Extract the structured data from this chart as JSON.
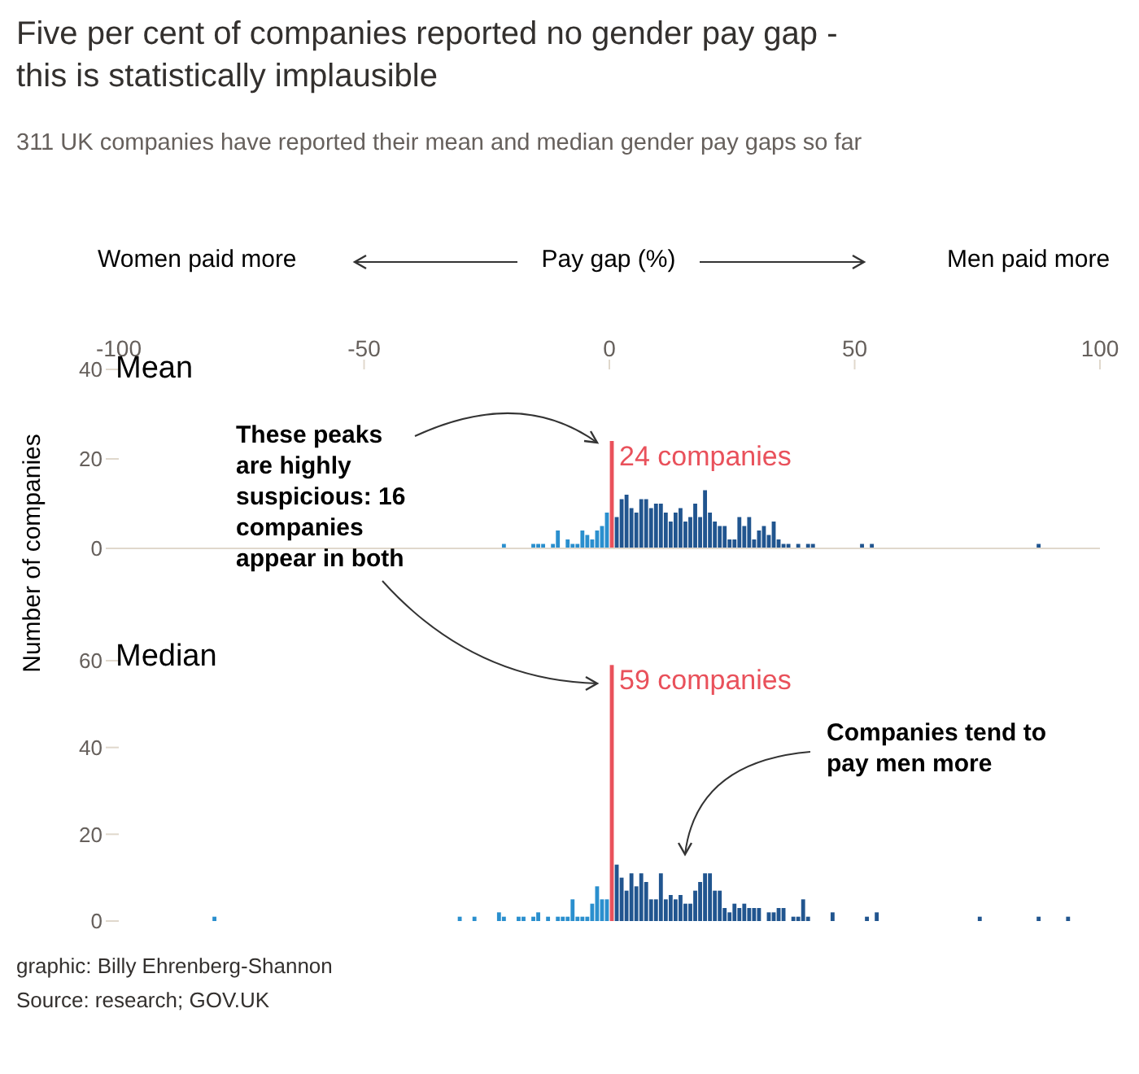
{
  "chart_data": [
    {
      "type": "histogram",
      "title": "Five per cent of companies reported no gender pay gap - this is statistically implausible",
      "subtitle": "311 UK companies have reported their mean and median gender pay gaps so far",
      "xlabel": "Pay gap (%)",
      "ylabel": "Number of companies",
      "annotations": [
        "Mean",
        "Women paid more",
        "Men paid more",
        "These peaks are highly suspicious: 16 companies appear in both",
        "graphic: Billy Ehrenberg-Shannon",
        "Source: research; GOV.UK",
        {
          "text": "24 companies",
          "x": 0,
          "y": 24
        }
      ],
      "xlim": [
        -100,
        100
      ],
      "xticks": [
        -100,
        -50,
        0,
        50,
        100
      ],
      "ylim": [
        0,
        40
      ],
      "yticks": [
        0,
        20,
        40
      ],
      "bins": [
        -22,
        -21,
        -20,
        -19,
        -18,
        -17,
        -16,
        -15,
        -14,
        -13,
        -12,
        -11,
        -10,
        -9,
        -8,
        -7,
        -6,
        -5,
        -4,
        -3,
        -2,
        -1,
        0,
        1,
        2,
        3,
        4,
        5,
        6,
        7,
        8,
        9,
        10,
        11,
        12,
        13,
        14,
        15,
        16,
        17,
        18,
        19,
        20,
        21,
        22,
        23,
        24,
        25,
        26,
        27,
        28,
        29,
        30,
        31,
        32,
        33,
        34,
        35,
        36,
        37,
        38,
        39,
        40,
        41,
        42,
        43,
        44,
        45,
        46,
        47,
        48,
        49,
        50,
        51,
        52,
        53,
        54,
        55,
        56,
        57,
        58,
        59,
        60,
        61,
        62,
        63,
        64,
        65,
        66,
        67,
        68,
        69,
        70,
        71,
        72,
        73,
        74,
        75,
        76,
        77,
        78,
        79,
        80,
        81,
        82,
        83,
        84,
        85,
        86,
        87,
        88
      ],
      "values": [
        1,
        null,
        null,
        null,
        null,
        null,
        1,
        1,
        1,
        null,
        1,
        4,
        null,
        2,
        1,
        1,
        4,
        3,
        2,
        4,
        5,
        8,
        24,
        7,
        11,
        12,
        9,
        8,
        11,
        11,
        9,
        10,
        10,
        8,
        6,
        8,
        9,
        6,
        7,
        10,
        7,
        13,
        8,
        6,
        5,
        5,
        2,
        2,
        7,
        5,
        7,
        2,
        4,
        5,
        3,
        6,
        2,
        1,
        1,
        null,
        1,
        null,
        1,
        1,
        null,
        null,
        null,
        null,
        null,
        null,
        null,
        null,
        null,
        1,
        null,
        1,
        null,
        null,
        null,
        null,
        null,
        null,
        null,
        null,
        null,
        null,
        null,
        null,
        null,
        null,
        null,
        null,
        null,
        null,
        null,
        null,
        null,
        null,
        null,
        null,
        null,
        null,
        null,
        null,
        null,
        null,
        null,
        null,
        null,
        1
      ],
      "colors": [
        "#2a8fce",
        "#2a8fce",
        "#2a8fce",
        "#2a8fce",
        "#2a8fce",
        "#2a8fce",
        "#2a8fce",
        "#2a8fce",
        "#2a8fce",
        "#2a8fce",
        "#2a8fce",
        "#2a8fce",
        "#2a8fce",
        "#2a8fce",
        "#2a8fce",
        "#2a8fce",
        "#2a8fce",
        "#2a8fce",
        "#2a8fce",
        "#2a8fce",
        "#2a8fce",
        "#2a8fce",
        "#e9515b",
        "#21558f",
        "#21558f",
        "#21558f",
        "#21558f",
        "#21558f",
        "#21558f",
        "#21558f",
        "#21558f",
        "#21558f",
        "#21558f",
        "#21558f",
        "#21558f",
        "#21558f",
        "#21558f",
        "#21558f",
        "#21558f",
        "#21558f",
        "#21558f",
        "#21558f",
        "#21558f",
        "#21558f",
        "#21558f",
        "#21558f",
        "#21558f",
        "#21558f",
        "#21558f",
        "#21558f",
        "#21558f",
        "#21558f",
        "#21558f",
        "#21558f",
        "#21558f",
        "#21558f",
        "#21558f",
        "#21558f",
        "#21558f",
        "#21558f",
        "#21558f",
        "#21558f",
        "#21558f",
        "#21558f",
        "#21558f",
        "#21558f",
        "#21558f",
        "#21558f",
        "#21558f",
        "#21558f",
        "#21558f",
        "#21558f",
        "#21558f",
        "#21558f",
        "#21558f",
        "#21558f",
        "#21558f",
        "#21558f",
        "#21558f",
        "#21558f",
        "#21558f",
        "#21558f",
        "#21558f",
        "#21558f",
        "#21558f",
        "#21558f",
        "#21558f",
        "#21558f",
        "#21558f",
        "#21558f",
        "#21558f",
        "#21558f",
        "#21558f",
        "#21558f",
        "#21558f",
        "#21558f",
        "#21558f",
        "#21558f",
        "#21558f",
        "#21558f",
        "#21558f",
        "#21558f",
        "#21558f",
        "#21558f",
        "#21558f",
        "#21558f",
        "#21558f",
        "#21558f",
        "#21558f",
        "#21558f"
      ]
    },
    {
      "type": "histogram",
      "annotations": [
        "Median",
        "Companies tend to pay men more",
        {
          "text": "59 companies",
          "x": 0,
          "y": 59
        }
      ],
      "xlim": [
        -100,
        100
      ],
      "xticks": [
        -100,
        -50,
        0,
        50,
        100
      ],
      "ylim": [
        0,
        60
      ],
      "yticks": [
        0,
        20,
        40,
        60
      ],
      "tick_labels": "y",
      "bins": [
        -81,
        -80,
        -79,
        -78,
        -77,
        -76,
        -75,
        -74,
        -73,
        -72,
        -71,
        -70,
        -69,
        -68,
        -67,
        -66,
        -65,
        -64,
        -63,
        -62,
        -61,
        -60,
        -59,
        -58,
        -57,
        -56,
        -55,
        -54,
        -53,
        -52,
        -51,
        -50,
        -49,
        -48,
        -47,
        -46,
        -45,
        -44,
        -43,
        -42,
        -41,
        -40,
        -39,
        -38,
        -37,
        -36,
        -35,
        -34,
        -33,
        -32,
        -31,
        -30,
        -29,
        -28,
        -27,
        -26,
        -25,
        -24,
        -23,
        -22,
        -21,
        -20,
        -19,
        -18,
        -17,
        -16,
        -15,
        -14,
        -13,
        -12,
        -11,
        -10,
        -9,
        -8,
        -7,
        -6,
        -5,
        -4,
        -3,
        -2,
        -1,
        0,
        1,
        2,
        3,
        4,
        5,
        6,
        7,
        8,
        9,
        10,
        11,
        12,
        13,
        14,
        15,
        16,
        17,
        18,
        19,
        20,
        21,
        22,
        23,
        24,
        25,
        26,
        27,
        28,
        29,
        30,
        31,
        32,
        33,
        34,
        35,
        36,
        37,
        38,
        39,
        40,
        41,
        42,
        43,
        44,
        45,
        46,
        47,
        48,
        49,
        50,
        51,
        52,
        53,
        54,
        55,
        56,
        57,
        58,
        59,
        60,
        61,
        62,
        63,
        64,
        65,
        66,
        67,
        68,
        69,
        70,
        71,
        72,
        73,
        74,
        75,
        76,
        77,
        78,
        79,
        80,
        81,
        82,
        83,
        84,
        85,
        86,
        87,
        88,
        89,
        90,
        91,
        92,
        93,
        94
      ],
      "values": [
        1,
        null,
        null,
        null,
        null,
        null,
        null,
        null,
        null,
        null,
        null,
        null,
        null,
        null,
        null,
        null,
        null,
        null,
        null,
        null,
        null,
        null,
        null,
        null,
        null,
        null,
        null,
        null,
        null,
        null,
        null,
        null,
        null,
        null,
        null,
        null,
        null,
        null,
        null,
        null,
        null,
        null,
        null,
        null,
        null,
        null,
        null,
        null,
        null,
        null,
        1,
        null,
        null,
        1,
        null,
        null,
        null,
        null,
        2,
        1,
        null,
        null,
        1,
        1,
        null,
        1,
        2,
        null,
        1,
        null,
        1,
        1,
        1,
        5,
        1,
        1,
        1,
        4,
        8,
        5,
        5,
        59,
        13,
        10,
        7,
        11,
        8,
        11,
        9,
        5,
        5,
        11,
        5,
        6,
        5,
        6,
        4,
        4,
        7,
        9,
        11,
        11,
        7,
        7,
        3,
        2,
        4,
        3,
        4,
        3,
        3,
        3,
        null,
        2,
        2,
        3,
        3,
        null,
        1,
        1,
        5,
        1,
        null,
        null,
        null,
        null,
        2,
        null,
        null,
        null,
        null,
        null,
        null,
        1,
        null,
        2,
        null,
        null,
        null,
        null,
        null,
        null,
        null,
        null,
        null,
        null,
        null,
        null,
        null,
        null,
        null,
        null,
        null,
        null,
        null,
        null,
        1,
        null,
        null,
        null,
        null,
        null,
        null,
        null,
        null,
        null,
        null,
        null,
        1,
        null,
        null,
        null,
        null,
        null,
        1
      ],
      "colors": [
        "#2a8fce",
        "#2a8fce",
        "#2a8fce",
        "#2a8fce",
        "#2a8fce",
        "#2a8fce",
        "#2a8fce",
        "#2a8fce",
        "#2a8fce",
        "#2a8fce",
        "#2a8fce",
        "#2a8fce",
        "#2a8fce",
        "#2a8fce",
        "#2a8fce",
        "#2a8fce",
        "#2a8fce",
        "#2a8fce",
        "#2a8fce",
        "#2a8fce",
        "#2a8fce",
        "#2a8fce",
        "#2a8fce",
        "#2a8fce",
        "#2a8fce",
        "#2a8fce",
        "#2a8fce",
        "#2a8fce",
        "#2a8fce",
        "#2a8fce",
        "#2a8fce",
        "#2a8fce",
        "#2a8fce",
        "#2a8fce",
        "#2a8fce",
        "#2a8fce",
        "#2a8fce",
        "#2a8fce",
        "#2a8fce",
        "#2a8fce",
        "#2a8fce",
        "#2a8fce",
        "#2a8fce",
        "#2a8fce",
        "#2a8fce",
        "#2a8fce",
        "#2a8fce",
        "#2a8fce",
        "#2a8fce",
        "#2a8fce",
        "#2a8fce",
        "#2a8fce",
        "#2a8fce",
        "#2a8fce",
        "#2a8fce",
        "#2a8fce",
        "#2a8fce",
        "#2a8fce",
        "#2a8fce",
        "#2a8fce",
        "#2a8fce",
        "#2a8fce",
        "#2a8fce",
        "#2a8fce",
        "#2a8fce",
        "#2a8fce",
        "#2a8fce",
        "#2a8fce",
        "#2a8fce",
        "#2a8fce",
        "#2a8fce",
        "#2a8fce",
        "#2a8fce",
        "#2a8fce",
        "#2a8fce",
        "#2a8fce",
        "#2a8fce",
        "#2a8fce",
        "#2a8fce",
        "#2a8fce",
        "#2a8fce",
        "#e9515b",
        "#21558f",
        "#21558f",
        "#21558f",
        "#21558f",
        "#21558f",
        "#21558f",
        "#21558f",
        "#21558f",
        "#21558f",
        "#21558f",
        "#21558f",
        "#21558f",
        "#21558f",
        "#21558f",
        "#21558f",
        "#21558f",
        "#21558f",
        "#21558f",
        "#21558f",
        "#21558f",
        "#21558f",
        "#21558f",
        "#21558f",
        "#21558f",
        "#21558f",
        "#21558f",
        "#21558f",
        "#21558f",
        "#21558f",
        "#21558f",
        "#21558f",
        "#21558f",
        "#21558f",
        "#21558f",
        "#21558f",
        "#21558f",
        "#21558f",
        "#21558f",
        "#21558f",
        "#21558f",
        "#21558f",
        "#21558f",
        "#21558f",
        "#21558f",
        "#21558f",
        "#21558f",
        "#21558f",
        "#21558f",
        "#21558f",
        "#21558f",
        "#21558f",
        "#21558f",
        "#21558f",
        "#21558f",
        "#21558f",
        "#21558f",
        "#21558f",
        "#21558f",
        "#21558f",
        "#21558f",
        "#21558f",
        "#21558f",
        "#21558f",
        "#21558f",
        "#21558f",
        "#21558f",
        "#21558f",
        "#21558f",
        "#21558f",
        "#21558f",
        "#21558f",
        "#21558f",
        "#21558f",
        "#21558f",
        "#21558f",
        "#21558f",
        "#21558f",
        "#21558f",
        "#21558f",
        "#21558f",
        "#21558f",
        "#21558f",
        "#21558f",
        "#21558f",
        "#21558f",
        "#21558f",
        "#21558f",
        "#21558f",
        "#21558f",
        "#21558f",
        "#21558f",
        "#21558f",
        "#21558f"
      ]
    }
  ]
}
